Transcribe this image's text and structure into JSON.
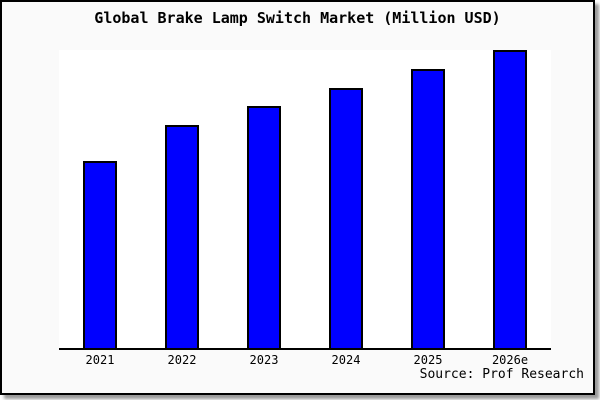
{
  "title": "Global Brake Lamp Switch Market (Million USD)",
  "source_note": "Source: Prof Research",
  "colors": {
    "bar_fill": "#0000FF",
    "bar_border": "#000000",
    "card_background": "#FAFAFA",
    "plot_background": "#FFFFFF",
    "axis": "#000000",
    "border": "#000000",
    "shadow": "#999999",
    "text": "#000000"
  },
  "chart_data": {
    "type": "bar",
    "title": "Global Brake Lamp Switch Market (Million USD)",
    "categories": [
      "2021",
      "2022",
      "2023",
      "2024",
      "2025",
      "2026e"
    ],
    "values": [
      62.7,
      74.8,
      81.3,
      87.3,
      93.7,
      100
    ],
    "value_note": "No y-axis shown in chart; values estimated as percent of tallest (2026e) bar height",
    "xlabel": "",
    "ylabel": "",
    "ylim": [
      0,
      100
    ],
    "grid": false,
    "legend": "none",
    "y_axis_visible": false,
    "annotations": [
      "Source: Prof Research"
    ]
  }
}
